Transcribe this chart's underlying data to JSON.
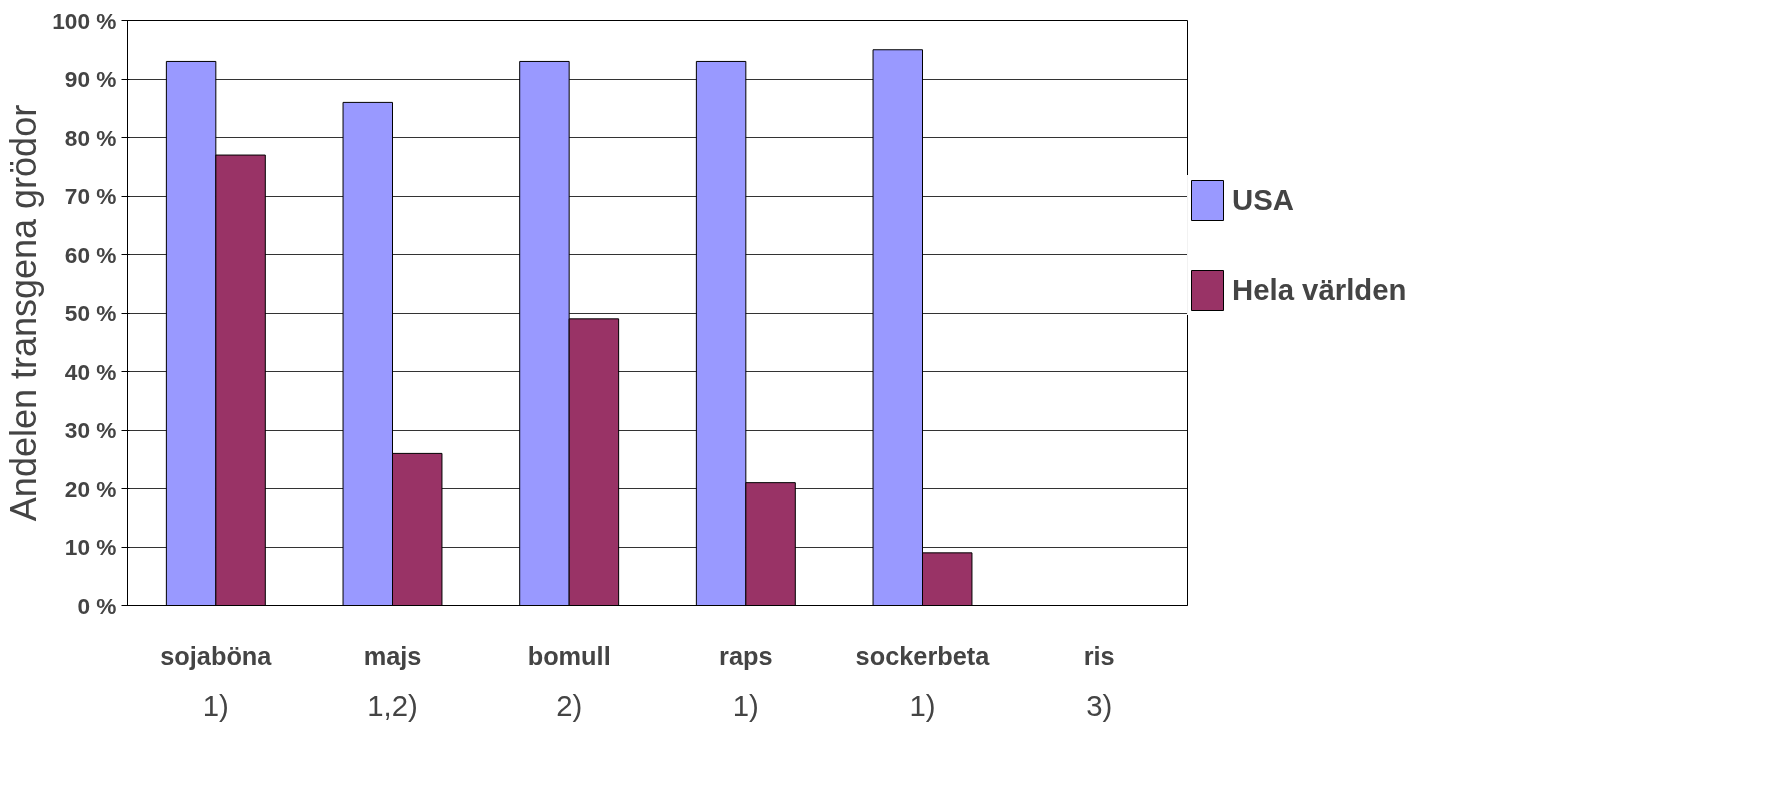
{
  "chart_data": {
    "type": "bar",
    "ylabel": "Andelen transgena grödor",
    "categories": [
      "sojaböna",
      "majs",
      "bomull",
      "raps",
      "sockerbeta",
      "ris"
    ],
    "series": [
      {
        "name": "USA",
        "color": "#9999ff",
        "values": [
          93,
          86,
          93,
          93,
          95,
          null
        ]
      },
      {
        "name": "Hela världen",
        "color": "#993366",
        "values": [
          77,
          26,
          49,
          21,
          9,
          null
        ]
      }
    ],
    "ylim": [
      0,
      100
    ],
    "yticks": [
      {
        "value": 0,
        "label": "0 %"
      },
      {
        "value": 10,
        "label": "10 %"
      },
      {
        "value": 20,
        "label": "20 %"
      },
      {
        "value": 30,
        "label": "30 %"
      },
      {
        "value": 40,
        "label": "40 %"
      },
      {
        "value": 50,
        "label": "50 %"
      },
      {
        "value": 60,
        "label": "60 %"
      },
      {
        "value": 70,
        "label": "70 %"
      },
      {
        "value": 80,
        "label": "80 %"
      },
      {
        "value": 90,
        "label": "90 %"
      },
      {
        "value": 100,
        "label": "100 %"
      }
    ],
    "grid": "y",
    "legend": "right",
    "annotations": [
      "1)",
      "1,2)",
      "2)",
      "1)",
      "1)",
      "3)"
    ]
  }
}
